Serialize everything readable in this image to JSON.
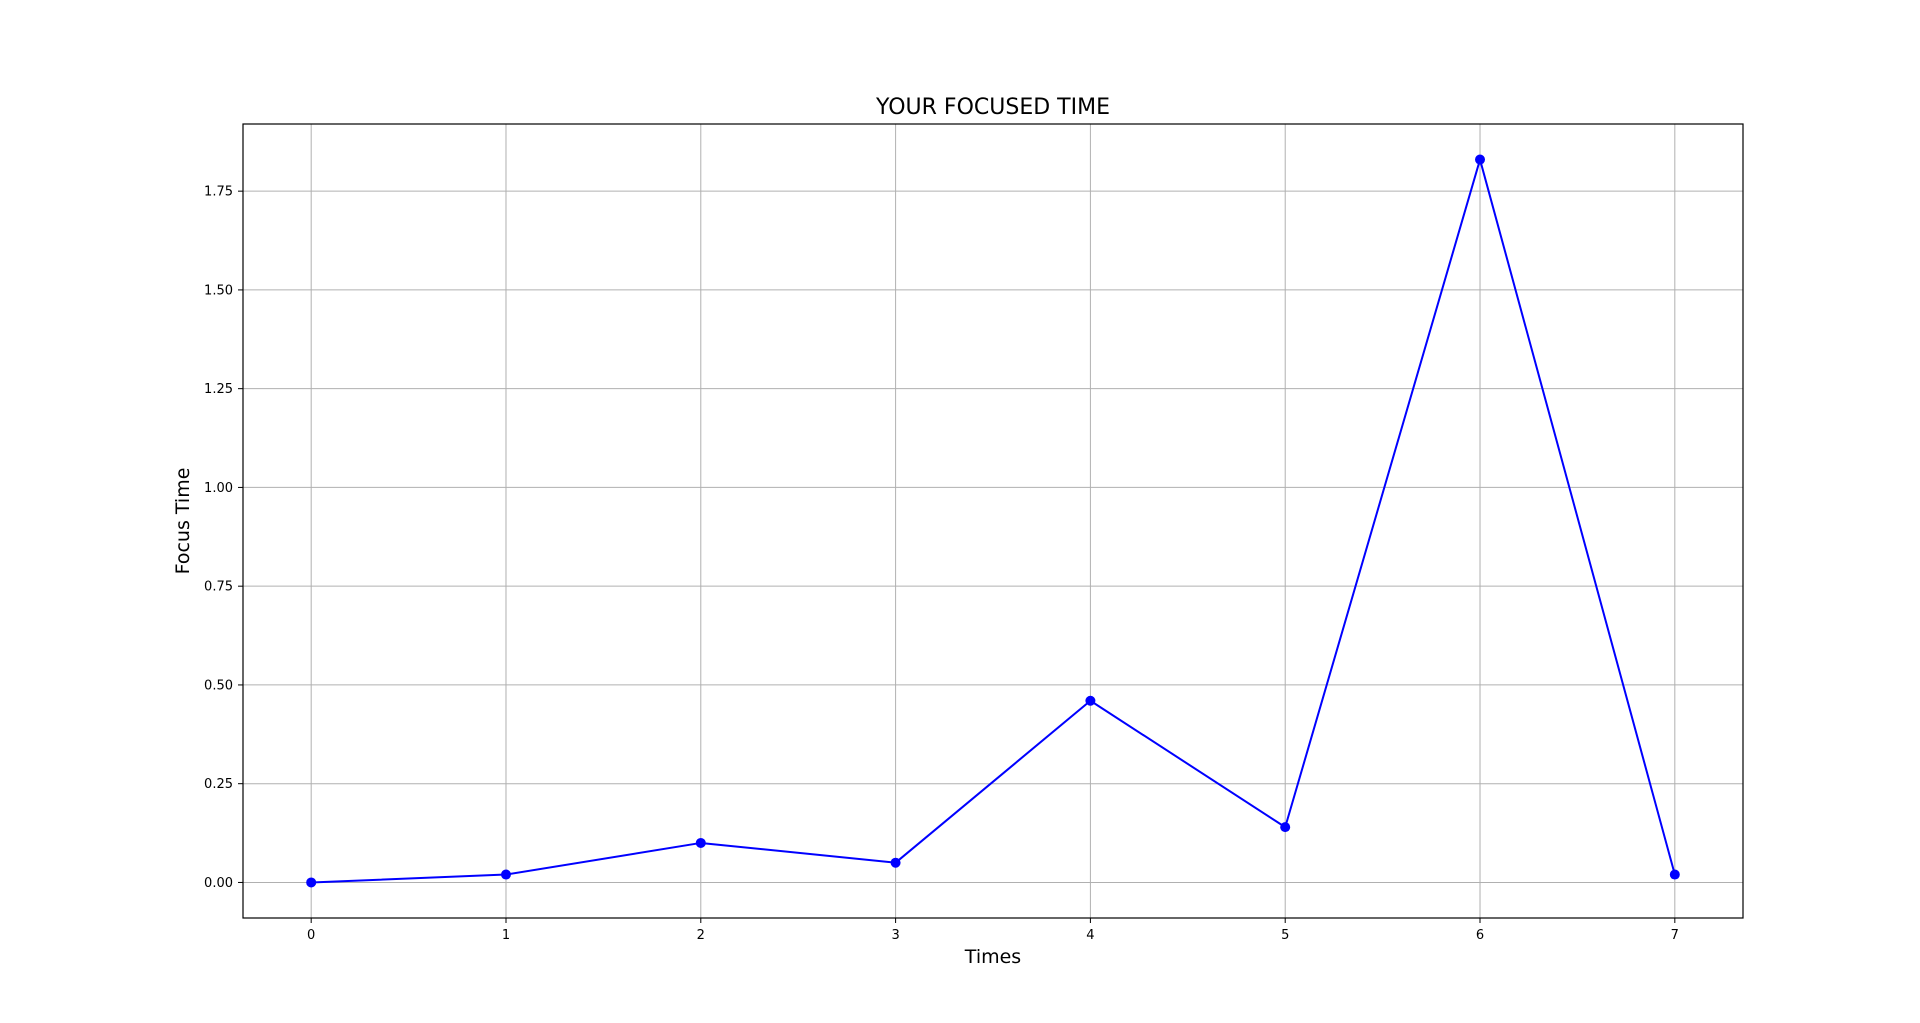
{
  "chart_data": {
    "type": "line",
    "title": "YOUR FOCUSED TIME",
    "xlabel": "Times",
    "ylabel": "Focus Time",
    "x": [
      0,
      1,
      2,
      3,
      4,
      5,
      6,
      7
    ],
    "x_ticks": [
      "0",
      "1",
      "2",
      "3",
      "4",
      "5",
      "6",
      "7"
    ],
    "y_ticks": [
      "0.00",
      "0.25",
      "0.50",
      "0.75",
      "1.00",
      "1.25",
      "1.50",
      "1.75"
    ],
    "series": [
      {
        "values": [
          0.0,
          0.02,
          0.1,
          0.05,
          0.46,
          0.14,
          1.83,
          0.02
        ],
        "color": "#0000ff",
        "marker": "circle"
      }
    ],
    "xlim": [
      -0.35,
      7.35
    ],
    "ylim": [
      -0.09,
      1.92
    ],
    "grid": true,
    "grid_color": "#b0b0b0",
    "axes_color": "#000000"
  }
}
